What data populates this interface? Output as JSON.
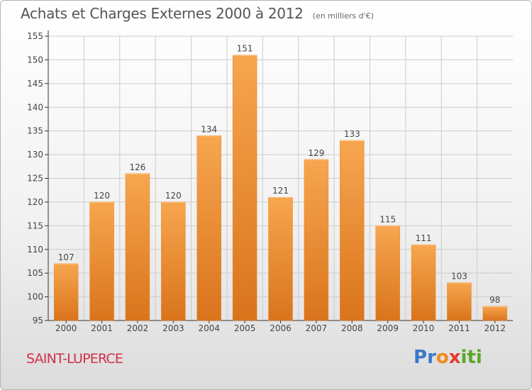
{
  "header": {
    "title": "Achats et Charges Externes 2000 à 2012",
    "subtitle": "(en milliers d'€)"
  },
  "footer": {
    "commune": "SAINT-LUPERCE",
    "logo_letters": [
      {
        "ch": "P",
        "color": "#3a78c9"
      },
      {
        "ch": "r",
        "color": "#3a78c9"
      },
      {
        "ch": "o",
        "color": "#f08a1c"
      },
      {
        "ch": "x",
        "color": "#e23d28"
      },
      {
        "ch": "i",
        "color": "#5aa82a"
      },
      {
        "ch": "t",
        "color": "#5aa82a"
      },
      {
        "ch": "i",
        "color": "#5aa82a"
      }
    ]
  },
  "colors": {
    "bar_light": "#f7a64f",
    "bar_dark": "#d9741c",
    "grid": "#cccccc",
    "axis": "#333333"
  },
  "chart_data": {
    "type": "bar",
    "categories": [
      "2000",
      "2001",
      "2002",
      "2003",
      "2004",
      "2005",
      "2006",
      "2007",
      "2008",
      "2009",
      "2010",
      "2011",
      "2012"
    ],
    "values": [
      107,
      120,
      126,
      120,
      134,
      151,
      121,
      129,
      133,
      115,
      111,
      103,
      98
    ],
    "value_labels": [
      "107",
      "120",
      "126",
      "120",
      "134",
      "151",
      "121",
      "129",
      "133",
      "115",
      "111",
      "103",
      "98"
    ],
    "yticks": [
      95,
      100,
      105,
      110,
      115,
      120,
      125,
      130,
      135,
      140,
      145,
      150,
      155
    ],
    "ylim": [
      95,
      155
    ],
    "grid": true,
    "legend": "none"
  }
}
